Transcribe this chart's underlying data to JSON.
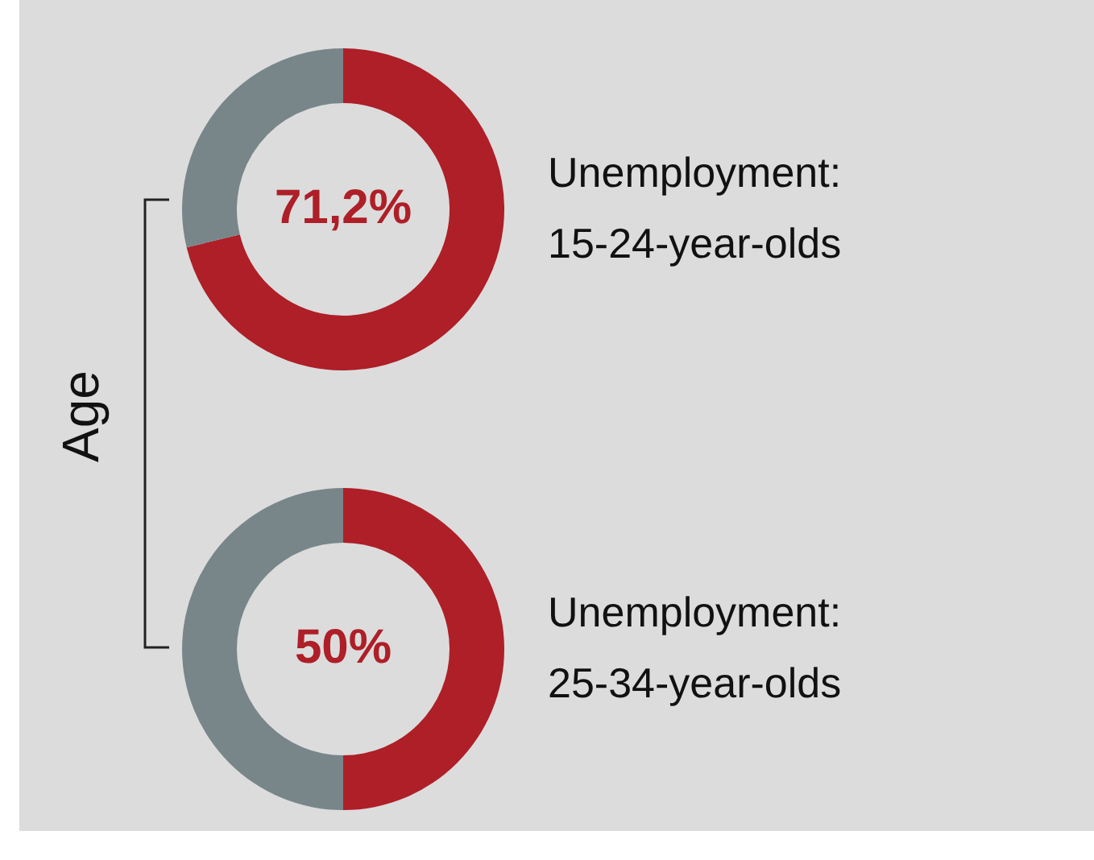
{
  "chart_data": [
    {
      "type": "donut",
      "title": "Unemployment: 15-24-year-olds",
      "categories": [
        null,
        null
      ],
      "values": [
        71.2,
        28.8
      ],
      "colors": [
        "#ae1f28",
        "#78868a"
      ],
      "value_labels": [
        "71,2%",
        null
      ],
      "legend": false,
      "annotations": [
        "Age"
      ]
    },
    {
      "type": "donut",
      "title": "Unemployment: 25-34-year-olds",
      "categories": [
        null,
        null
      ],
      "values": [
        50,
        50
      ],
      "colors": [
        "#ae1f28",
        "#78868a"
      ],
      "value_labels": [
        "50%",
        null
      ],
      "legend": false
    }
  ]
}
